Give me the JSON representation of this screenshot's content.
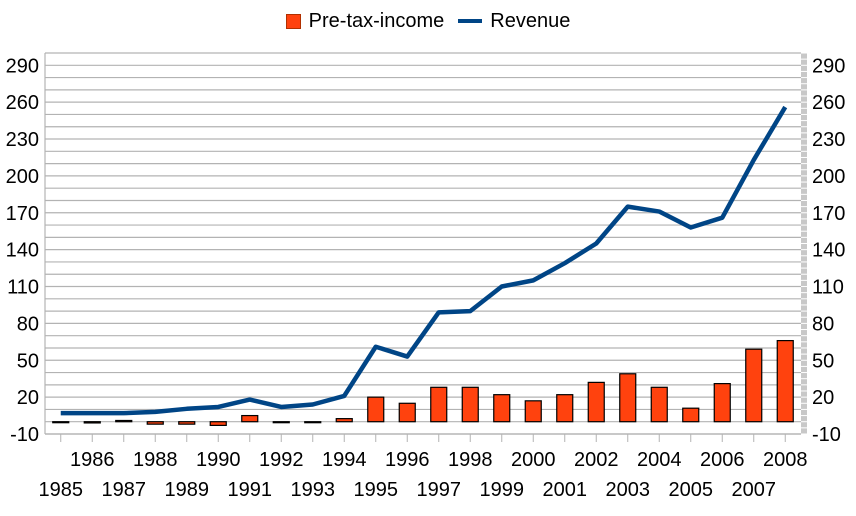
{
  "chart_data": {
    "type": "bar+line",
    "title": "",
    "xlabel": "",
    "ylabel": "",
    "ylim": [
      -10,
      300
    ],
    "yticks": [
      -10,
      20,
      50,
      80,
      110,
      140,
      170,
      200,
      230,
      260,
      290
    ],
    "yticks_right": [
      -10,
      20,
      50,
      80,
      110,
      140,
      170,
      200,
      230,
      260,
      290
    ],
    "grid": true,
    "legend": {
      "position": "top",
      "entries": [
        "Pre-tax-income",
        "Revenue"
      ]
    },
    "categories": [
      "1985",
      "1986",
      "1987",
      "1988",
      "1989",
      "1990",
      "1991",
      "1992",
      "1993",
      "1994",
      "1995",
      "1996",
      "1997",
      "1998",
      "1999",
      "2000",
      "2001",
      "2002",
      "2003",
      "2004",
      "2005",
      "2006",
      "2007",
      "2008"
    ],
    "series": [
      {
        "name": "Pre-tax-income",
        "kind": "bar",
        "color": "#ff420e",
        "values": [
          0,
          -1,
          1,
          -2,
          -2,
          -3,
          5,
          0,
          0,
          2.5,
          20,
          15,
          28,
          28,
          22,
          17,
          22,
          32,
          39,
          28,
          11,
          31,
          59,
          66
        ]
      },
      {
        "name": "Revenue",
        "kind": "line",
        "color": "#004586",
        "values": [
          7,
          7,
          7,
          8,
          10.5,
          12,
          18,
          12,
          14,
          21,
          61,
          53,
          89,
          90,
          110,
          115,
          129,
          145,
          175,
          171,
          158,
          166,
          213,
          256
        ]
      }
    ]
  }
}
